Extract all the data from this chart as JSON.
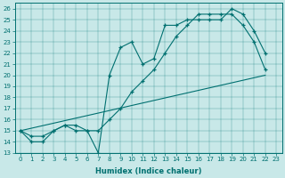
{
  "bg_color": "#c8e8e8",
  "line_color": "#007070",
  "xlabel": "Humidex (Indice chaleur)",
  "xlim": [
    -0.5,
    23.5
  ],
  "ylim": [
    13.0,
    26.5
  ],
  "yticks": [
    13,
    14,
    15,
    16,
    17,
    18,
    19,
    20,
    21,
    22,
    23,
    24,
    25,
    26
  ],
  "xticks": [
    0,
    1,
    2,
    3,
    4,
    5,
    6,
    7,
    8,
    9,
    10,
    11,
    12,
    13,
    14,
    15,
    16,
    17,
    18,
    19,
    20,
    21,
    22,
    23
  ],
  "line1_x": [
    0,
    1,
    2,
    3,
    4,
    5,
    6,
    7,
    8,
    9,
    10,
    11,
    12,
    13,
    14,
    15,
    16,
    17,
    18,
    19,
    20,
    21,
    22
  ],
  "line1_y": [
    15.0,
    14.0,
    14.0,
    15.0,
    15.5,
    15.0,
    15.0,
    13.0,
    20.0,
    22.5,
    23.0,
    21.0,
    21.5,
    24.5,
    24.5,
    25.0,
    25.0,
    25.0,
    25.0,
    26.0,
    25.5,
    24.0,
    22.0
  ],
  "line2_x": [
    0,
    22
  ],
  "line2_y": [
    15.0,
    20.0
  ],
  "line3_x": [
    0,
    1,
    2,
    3,
    4,
    5,
    6,
    7,
    8,
    9,
    10,
    11,
    12,
    13,
    14,
    15,
    16,
    17,
    18,
    19,
    20,
    21,
    22
  ],
  "line3_y": [
    15.0,
    14.5,
    14.5,
    15.0,
    15.5,
    15.5,
    15.0,
    15.0,
    16.0,
    17.0,
    18.5,
    19.5,
    20.5,
    22.0,
    23.5,
    24.5,
    25.5,
    25.5,
    25.5,
    25.5,
    24.5,
    23.0,
    20.5
  ]
}
